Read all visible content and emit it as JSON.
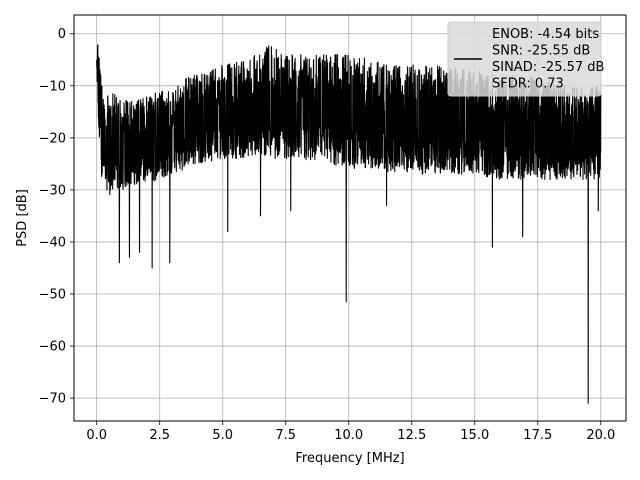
{
  "chart_data": {
    "type": "line",
    "title": "",
    "xlabel": "Frequency [MHz]",
    "ylabel": "PSD [dB]",
    "xlim": [
      -0.9,
      21.0
    ],
    "ylim": [
      -74.4,
      3.6
    ],
    "xticks": [
      0.0,
      2.5,
      5.0,
      7.5,
      10.0,
      12.5,
      15.0,
      17.5,
      20.0
    ],
    "xtick_labels": [
      "0.0",
      "2.5",
      "5.0",
      "7.5",
      "10.0",
      "12.5",
      "15.0",
      "17.5",
      "20.0"
    ],
    "yticks": [
      0,
      -10,
      -20,
      -30,
      -40,
      -50,
      -60,
      -70
    ],
    "ytick_labels": [
      "0",
      "−10",
      "−20",
      "−30",
      "−40",
      "−50",
      "−60",
      "−70"
    ],
    "grid": true,
    "legend_position": "top-right",
    "legend_entries": [
      "ENOB: -4.54 bits",
      "SNR: -25.55 dB",
      "SINAD: -25.57 dB",
      "SFDR: 0.73"
    ],
    "series": [
      {
        "color": "#000000",
        "envelope": {
          "x": [
            0.0,
            0.05,
            0.2,
            0.5,
            1.0,
            1.5,
            2.0,
            2.5,
            3.0,
            3.5,
            4.0,
            5.0,
            6.0,
            6.8,
            7.5,
            8.5,
            10.0,
            11.0,
            12.0,
            13.5,
            15.0,
            16.0,
            17.0,
            18.0,
            19.0,
            19.5,
            20.0
          ],
          "upper": [
            -5,
            0,
            -10,
            -11,
            -12,
            -13,
            -12,
            -11,
            -11,
            -8,
            -8,
            -6,
            -5,
            -2,
            -4,
            -4,
            -4,
            -5,
            -6,
            -6,
            -7,
            -8,
            -8,
            -9,
            -10,
            -10,
            -10
          ],
          "lower": [
            -8,
            -18,
            -28,
            -31,
            -30,
            -29,
            -29,
            -28,
            -27,
            -26,
            -25,
            -24,
            -24,
            -24,
            -24,
            -25,
            -26,
            -26,
            -27,
            -27,
            -27,
            -28,
            -28,
            -28,
            -28,
            -28,
            -28
          ]
        },
        "dips": [
          {
            "x": 0.9,
            "y": -44
          },
          {
            "x": 1.3,
            "y": -43
          },
          {
            "x": 1.7,
            "y": -42
          },
          {
            "x": 2.2,
            "y": -45
          },
          {
            "x": 2.9,
            "y": -44
          },
          {
            "x": 5.2,
            "y": -38
          },
          {
            "x": 6.5,
            "y": -35
          },
          {
            "x": 7.7,
            "y": -34
          },
          {
            "x": 9.9,
            "y": -51.5
          },
          {
            "x": 11.5,
            "y": -33
          },
          {
            "x": 15.7,
            "y": -41
          },
          {
            "x": 16.9,
            "y": -39
          },
          {
            "x": 19.5,
            "y": -71
          },
          {
            "x": 19.9,
            "y": -34
          }
        ]
      }
    ]
  }
}
